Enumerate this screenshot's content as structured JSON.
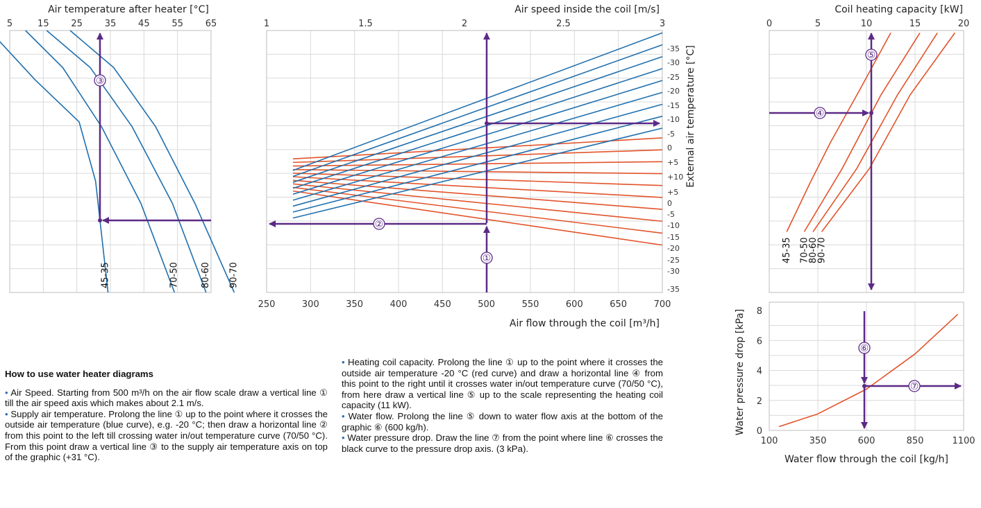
{
  "colors": {
    "blue": "#1f6fae",
    "red": "#e2532a",
    "arrow": "#5b2a86",
    "grid": "#d9d9d9"
  },
  "chart_data": [
    {
      "id": "air_temp",
      "type": "line",
      "title": "Air temperature after heater [°C]",
      "xlim": [
        5,
        65
      ],
      "xticks": [
        "5",
        "15",
        "25",
        "35",
        "45",
        "55",
        "65"
      ],
      "series_labels": [
        "45-35",
        "70-50",
        "80-60",
        "90-70"
      ],
      "series": [
        {
          "name": "45-35",
          "values": [
            [
              -1,
              9.5
            ],
            [
              12.6,
              7.5
            ],
            [
              25.7,
              5.8
            ],
            [
              30.6,
              3.4
            ],
            [
              34.3,
              -1.1
            ]
          ]
        },
        {
          "name": "70-50",
          "values": [
            [
              9.7,
              9.5
            ],
            [
              20.8,
              8.0
            ],
            [
              32.4,
              5.6
            ],
            [
              44.1,
              2.5
            ],
            [
              54.1,
              -1.1
            ]
          ]
        },
        {
          "name": "80-60",
          "values": [
            [
              16,
              9.5
            ],
            [
              29,
              8.0
            ],
            [
              41.5,
              5.6
            ],
            [
              53.5,
              2.5
            ],
            [
              63.5,
              -1.1
            ]
          ]
        },
        {
          "name": "90-70",
          "values": [
            [
              23,
              9.5
            ],
            [
              36,
              8.0
            ],
            [
              48.5,
              5.6
            ],
            [
              60.2,
              2.5
            ],
            [
              71.9,
              -1.1
            ]
          ]
        }
      ]
    },
    {
      "id": "air_speed",
      "type": "line",
      "top_axis": {
        "label": "Air speed inside the coil [m/s]",
        "ticks": [
          "1",
          "1.5",
          "2",
          "2.5",
          "3"
        ],
        "range": [
          1,
          3
        ]
      },
      "bottom_axis": {
        "label": "Air flow through the coil [m³/h]",
        "ticks": [
          "250",
          "300",
          "350",
          "400",
          "450",
          "500",
          "550",
          "600",
          "650",
          "700"
        ],
        "range": [
          250,
          700
        ]
      },
      "right_axis": {
        "label": "External air temperature [°C]"
      },
      "red_labels": [
        "-35",
        "-30",
        "-25",
        "-20",
        "-15",
        "-10",
        "-5",
        "0",
        "+5",
        "+10"
      ],
      "blue_labels": [
        "+5",
        "0",
        "-5",
        "-10",
        "-15",
        "-20",
        "-25",
        "-30",
        "-35"
      ],
      "red_series": [
        {
          "name": "-35",
          "values": [
            [
              280,
              -2.48
            ],
            [
              700,
              -7.02
            ]
          ]
        },
        {
          "name": "-30",
          "values": [
            [
              280,
              -2.18
            ],
            [
              700,
              -6.02
            ]
          ]
        },
        {
          "name": "-25",
          "values": [
            [
              280,
              -1.88
            ],
            [
              700,
              -5.02
            ]
          ]
        },
        {
          "name": "-20",
          "values": [
            [
              280,
              -1.58
            ],
            [
              700,
              -4.02
            ]
          ]
        },
        {
          "name": "-15",
          "values": [
            [
              280,
              -1.28
            ],
            [
              700,
              -3.02
            ]
          ]
        },
        {
          "name": "-10",
          "values": [
            [
              280,
              -0.98
            ],
            [
              700,
              -2.02
            ]
          ]
        },
        {
          "name": "-5",
          "values": [
            [
              280,
              -0.68
            ],
            [
              700,
              -1.02
            ]
          ]
        },
        {
          "name": "0",
          "values": [
            [
              280,
              -0.38
            ],
            [
              700,
              -0.02
            ]
          ]
        },
        {
          "name": "+5",
          "values": [
            [
              280,
              -0.08
            ],
            [
              700,
              0.98
            ]
          ]
        },
        {
          "name": "+10",
          "values": [
            [
              280,
              0.22
            ],
            [
              700,
              1.98
            ]
          ]
        }
      ],
      "blue_series": [
        {
          "name": "+5",
          "values": [
            [
              280,
              -4.75
            ],
            [
              700,
              2.8
            ]
          ]
        },
        {
          "name": "0",
          "values": [
            [
              280,
              -4.25
            ],
            [
              700,
              3.8
            ]
          ]
        },
        {
          "name": "-5",
          "values": [
            [
              280,
              -3.75
            ],
            [
              700,
              4.8
            ]
          ]
        },
        {
          "name": "-10",
          "values": [
            [
              280,
              -3.25
            ],
            [
              700,
              5.8
            ]
          ]
        },
        {
          "name": "-15",
          "values": [
            [
              280,
              -2.75
            ],
            [
              700,
              6.8
            ]
          ]
        },
        {
          "name": "-20",
          "values": [
            [
              280,
              -2.25
            ],
            [
              700,
              7.8
            ]
          ]
        },
        {
          "name": "-25",
          "values": [
            [
              280,
              -1.75
            ],
            [
              700,
              8.8
            ]
          ]
        },
        {
          "name": "-30",
          "values": [
            [
              280,
              -1.25
            ],
            [
              700,
              9.8
            ]
          ]
        },
        {
          "name": "-35",
          "values": [
            [
              280,
              -0.75
            ],
            [
              700,
              10.8
            ]
          ]
        }
      ]
    },
    {
      "id": "coil_capacity",
      "type": "line",
      "title": "Coil heating capacity [kW]",
      "xlim": [
        0,
        20
      ],
      "xticks": [
        "0",
        "5",
        "10",
        "15",
        "20"
      ],
      "series_labels": [
        "45-35",
        "70-50",
        "80-60",
        "90-70"
      ],
      "series": [
        {
          "name": "45-35",
          "values": [
            [
              1.8,
              -5.9
            ],
            [
              4.2,
              -1.8
            ],
            [
              6.3,
              1.6
            ],
            [
              9.3,
              6.0
            ],
            [
              12.5,
              10.8
            ]
          ]
        },
        {
          "name": "70-50",
          "values": [
            [
              3.6,
              -5.9
            ],
            [
              7.5,
              -0.6
            ],
            [
              11.5,
              5.6
            ],
            [
              15.5,
              10.8
            ]
          ]
        },
        {
          "name": "80-60",
          "values": [
            [
              4.5,
              -5.9
            ],
            [
              9.0,
              -0.6
            ],
            [
              13.2,
              5.6
            ],
            [
              17.3,
              10.8
            ]
          ]
        },
        {
          "name": "90-70",
          "values": [
            [
              5.4,
              -5.9
            ],
            [
              10.3,
              -0.6
            ],
            [
              14.5,
              5.6
            ],
            [
              19.1,
              10.8
            ]
          ]
        }
      ]
    },
    {
      "id": "pressure_drop",
      "type": "line",
      "xlabel": "Water flow through the coil [kg/h]",
      "ylabel": "Water pressure drop [kPa]",
      "xlim": [
        100,
        1100
      ],
      "ylim": [
        0,
        8
      ],
      "xticks": [
        "100",
        "350",
        "600",
        "850",
        "1100"
      ],
      "yticks": [
        "0",
        "2",
        "4",
        "6",
        "8"
      ],
      "series": [
        {
          "name": "",
          "values": [
            [
              150,
              0.25
            ],
            [
              350,
              1.1
            ],
            [
              600,
              2.75
            ],
            [
              850,
              5.1
            ],
            [
              1070,
              7.75
            ]
          ]
        }
      ]
    }
  ],
  "markers": [
    "①",
    "②",
    "③",
    "④",
    "⑤",
    "⑥",
    "⑦"
  ],
  "help": {
    "title": "How to use water heater diagrams",
    "p1": "Air Speed. Starting from 500 m³/h on the air flow scale draw a vertical line ① till the air speed axis which makes about 2.1 m/s.",
    "p2": "Supply air temperature. Prolong the line ① up to the point where it crosses the outside air temperature (blue curve), e.g. -20 °C; then draw a horizontal line ② from this point to the left till crossing water in/out temperature curve (70/50 °C). From this point draw a vertical line ③ to the supply air temperature axis on top of the graphic (+31 °C).",
    "p3": "Heating coil capacity. Prolong the line ① up to the point where it crosses the outside air temperature -20 °C (red curve) and draw a horizontal line ④ from this point to the right until it crosses water in/out temperature curve (70/50 °C), from here draw a vertical line ⑤ up to the scale representing the heating coil capacity (11 kW).",
    "p4": "Water flow. Prolong the line ⑤ down to water flow axis at the bottom of the graphic ⑥ (600 kg/h).",
    "p5": "Water pressure drop. Draw the line ⑦ from the point where line ⑥ crosses the black curve to the pressure drop axis. (3 kPa)."
  }
}
